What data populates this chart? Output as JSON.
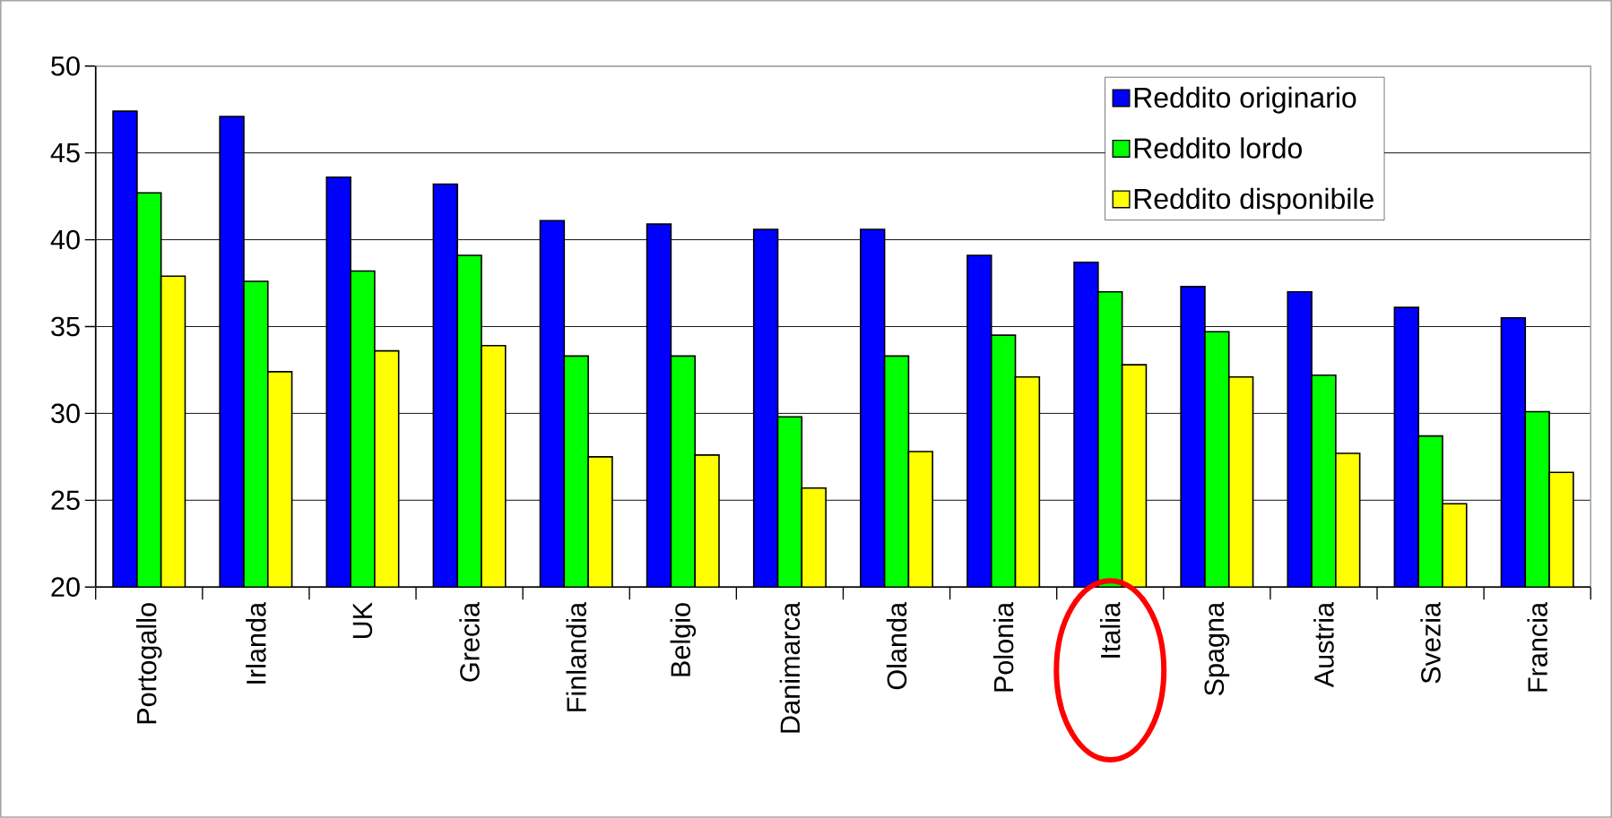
{
  "chart_data": {
    "type": "bar",
    "categories": [
      "Portogallo",
      "Irlanda",
      "UK",
      "Grecia",
      "Finlandia",
      "Belgio",
      "Danimarca",
      "Olanda",
      "Polonia",
      "Italia",
      "Spagna",
      "Austria",
      "Svezia",
      "Francia"
    ],
    "series": [
      {
        "name": "Reddito originario",
        "color": "#0000ff",
        "values": [
          47.4,
          47.1,
          43.6,
          43.2,
          41.1,
          40.9,
          40.6,
          40.6,
          39.1,
          38.7,
          37.3,
          37.0,
          36.1,
          35.5
        ]
      },
      {
        "name": "Reddito lordo",
        "color": "#00ff00",
        "values": [
          42.7,
          37.6,
          38.2,
          39.1,
          33.3,
          33.3,
          29.8,
          33.3,
          34.5,
          37.0,
          34.7,
          32.2,
          28.7,
          30.1
        ]
      },
      {
        "name": "Reddito disponibile",
        "color": "#ffff00",
        "values": [
          37.9,
          32.4,
          33.6,
          33.9,
          27.5,
          27.6,
          25.7,
          27.8,
          32.1,
          32.8,
          32.1,
          27.7,
          24.8,
          26.6
        ]
      }
    ],
    "ylim": [
      20,
      50
    ],
    "yticks": [
      20,
      25,
      30,
      35,
      40,
      45,
      50
    ],
    "grid": "y",
    "legend": "top right"
  }
}
